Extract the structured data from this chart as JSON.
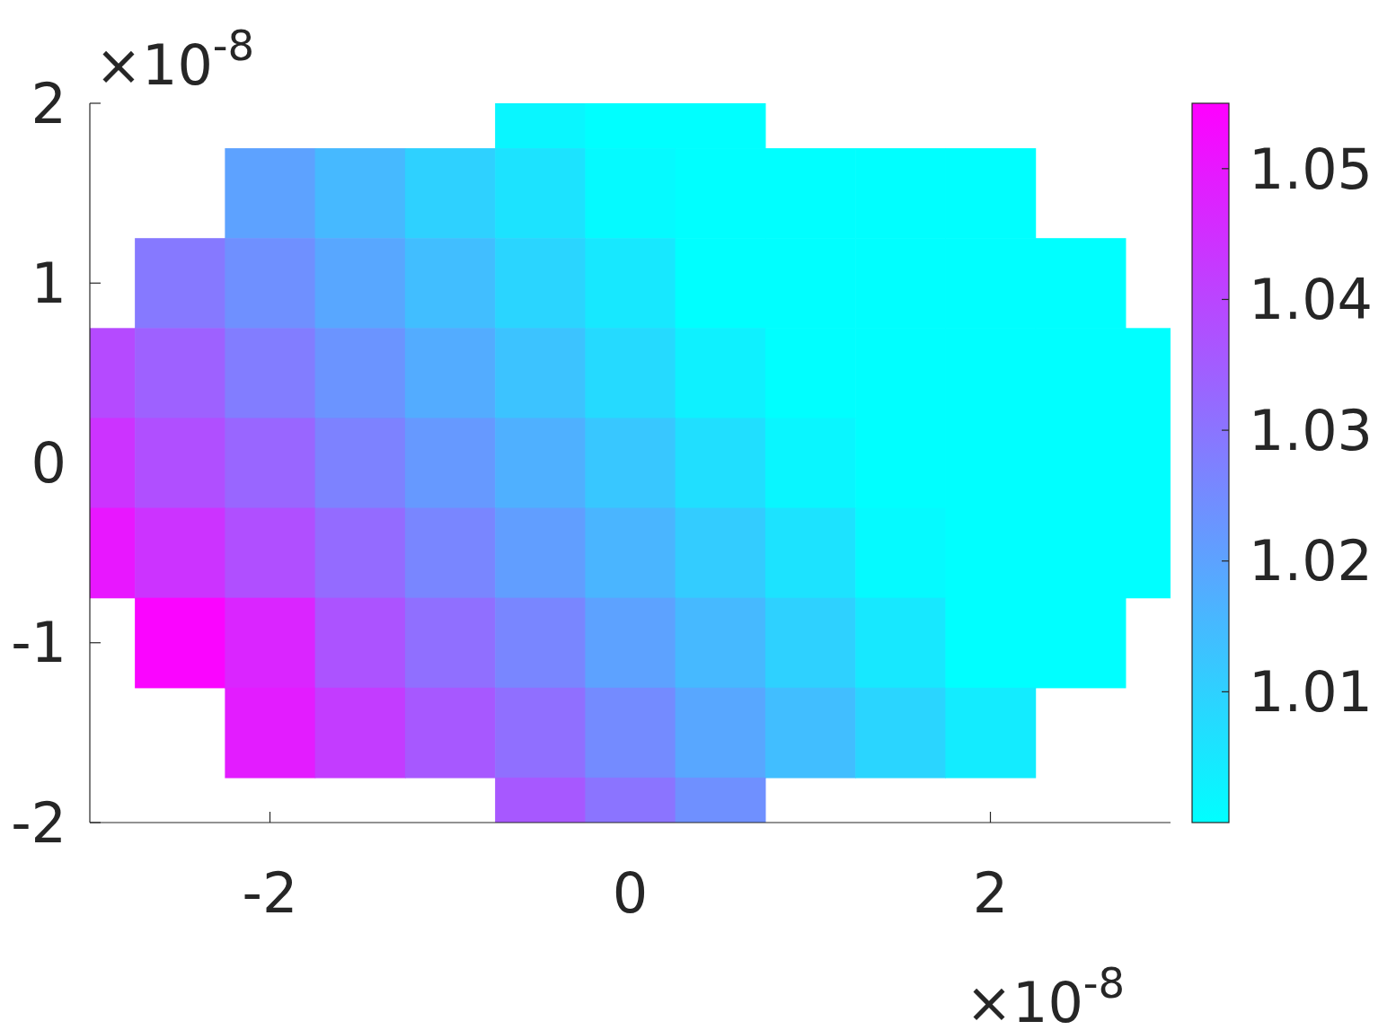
{
  "chart_data": {
    "type": "heatmap",
    "clim": [
      1.0,
      1.055
    ],
    "cticks": [
      1.01,
      1.02,
      1.03,
      1.04,
      1.05
    ],
    "annotations": [
      "×10$^{-8}$",
      "×10$^{-8}$"
    ],
    "categories": [
      null,
      null,
      "-2",
      null,
      null,
      null,
      "0",
      null,
      null,
      null,
      "2",
      null,
      null
    ],
    "y_categories": [
      "2",
      null,
      "1",
      null,
      "0",
      null,
      "-1",
      null,
      "-2"
    ],
    "cells": [
      [
        null,
        null,
        null,
        null,
        null,
        1.002,
        1.0,
        1.0,
        null,
        null,
        null,
        null,
        null
      ],
      [
        null,
        null,
        1.02,
        1.015,
        1.01,
        1.006,
        1.001,
        1.0,
        1.0,
        1.0,
        1.0,
        null,
        null
      ],
      [
        null,
        1.029,
        1.024,
        1.019,
        1.014,
        1.009,
        1.005,
        1.0,
        1.0,
        1.0,
        1.0,
        1.0,
        null
      ],
      [
        1.039,
        1.034,
        1.028,
        1.023,
        1.018,
        1.013,
        1.008,
        1.003,
        1.0,
        1.0,
        1.0,
        1.0,
        1.0
      ],
      [
        1.044,
        1.038,
        1.033,
        1.027,
        1.022,
        1.017,
        1.012,
        1.007,
        1.002,
        1.0,
        1.0,
        1.0,
        1.0
      ],
      [
        1.05,
        1.044,
        1.038,
        1.032,
        1.026,
        1.021,
        1.016,
        1.011,
        1.006,
        1.001,
        1.0,
        1.0,
        1.0
      ],
      [
        null,
        1.054,
        1.047,
        1.037,
        1.031,
        1.026,
        1.02,
        1.015,
        1.01,
        1.005,
        1.0,
        1.0,
        null
      ],
      [
        null,
        null,
        1.049,
        1.042,
        1.036,
        1.031,
        1.025,
        1.019,
        1.014,
        1.009,
        1.004,
        null,
        null
      ],
      [
        null,
        null,
        null,
        null,
        null,
        1.036,
        1.03,
        1.024,
        null,
        null,
        null,
        null,
        null
      ]
    ]
  }
}
